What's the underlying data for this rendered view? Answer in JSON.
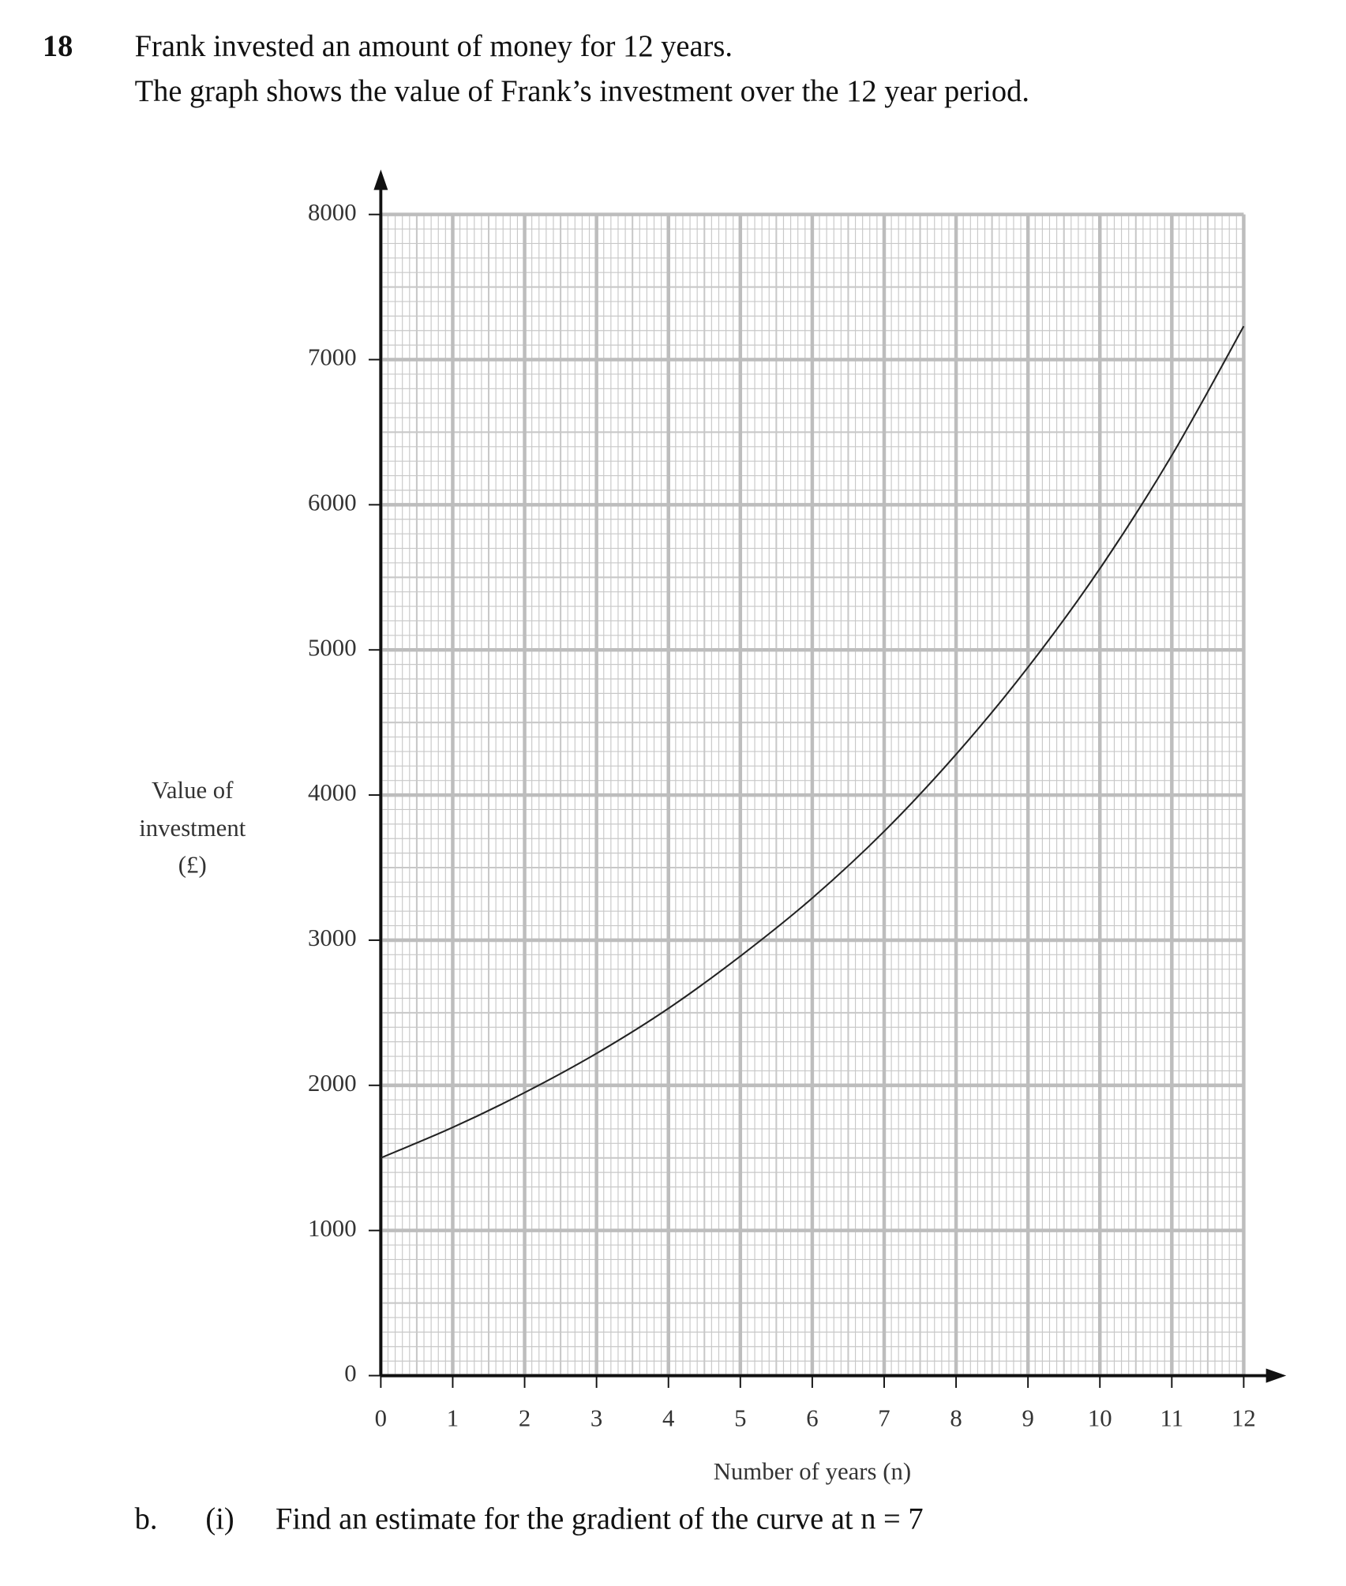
{
  "question": {
    "number": "18",
    "lines": [
      "Frank invested an amount of money for 12 years.",
      "The graph shows the value of Frank’s investment over the 12 year period."
    ]
  },
  "chart_data": {
    "type": "line",
    "y_label": [
      "Value of",
      "investment",
      "(£)"
    ],
    "x_label": "Number of years (n)",
    "x": [
      0,
      1,
      2,
      3,
      4,
      5,
      6,
      7,
      8,
      9,
      10,
      11,
      12
    ],
    "series": [
      {
        "color": "#222222",
        "values": [
          1500,
          1710,
          1950,
          2220,
          2530,
          2890,
          3290,
          3750,
          4280,
          4880,
          5560,
          6340,
          7230
        ]
      }
    ],
    "xlim": [
      0,
      12
    ],
    "xticks": [
      0,
      1,
      2,
      3,
      4,
      5,
      6,
      7,
      8,
      9,
      10,
      11,
      12
    ],
    "ylim": [
      0,
      8000
    ],
    "yticks": [
      0,
      1000,
      2000,
      3000,
      4000,
      5000,
      6000,
      7000,
      8000
    ],
    "grid": true
  },
  "part": {
    "letter": "b.",
    "sub": "(i)",
    "text": "Find an estimate for the gradient of the curve at n = 7"
  }
}
